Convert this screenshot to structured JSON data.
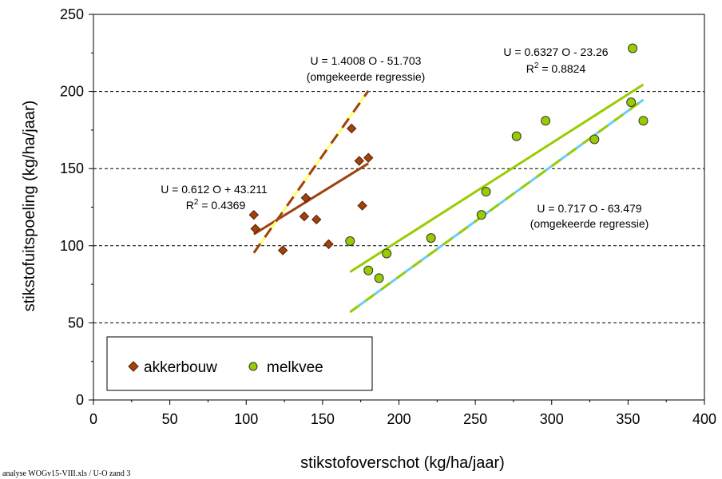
{
  "chart_data": {
    "type": "scatter",
    "xlabel": "stikstofoverschot  (kg/ha/jaar)",
    "ylabel": "stikstofuitspoeling (kg/ha/jaar)",
    "xlim": [
      0,
      400
    ],
    "ylim": [
      0,
      250
    ],
    "xticks": [
      "0",
      "50",
      "100",
      "150",
      "200",
      "250",
      "300",
      "350",
      "400"
    ],
    "yticks": [
      "0",
      "50",
      "100",
      "150",
      "200",
      "250"
    ],
    "grid": "horizontal dashed",
    "legend_position": "bottom-left",
    "series": [
      {
        "name": "akkerbouw",
        "marker": "diamond",
        "color": "#a0410f",
        "points": [
          [
            105,
            120
          ],
          [
            106,
            111
          ],
          [
            124,
            97
          ],
          [
            138,
            119
          ],
          [
            139,
            131
          ],
          [
            146,
            117
          ],
          [
            154,
            101
          ],
          [
            169,
            176
          ],
          [
            174,
            155
          ],
          [
            176,
            126
          ],
          [
            180,
            157
          ]
        ]
      },
      {
        "name": "melkvee",
        "marker": "circle",
        "color": "#99cc00",
        "points": [
          [
            168,
            103
          ],
          [
            180,
            84
          ],
          [
            187,
            79
          ],
          [
            192,
            95
          ],
          [
            221,
            105
          ],
          [
            254,
            120
          ],
          [
            257,
            135
          ],
          [
            277,
            171
          ],
          [
            296,
            181
          ],
          [
            328,
            169
          ],
          [
            352,
            193
          ],
          [
            353,
            228
          ],
          [
            360,
            181
          ]
        ]
      }
    ],
    "trendlines": [
      {
        "series": "akkerbouw",
        "x": [
          105,
          180
        ],
        "y": [
          107.47,
          153.37
        ],
        "color": "#a0410f",
        "style": "solid"
      },
      {
        "series": "akkerbouw",
        "x": [
          105,
          180
        ],
        "y": [
          95.38,
          200.44
        ],
        "color": "#a0410f",
        "style": "dashed",
        "dash_color": "#ffff66"
      },
      {
        "series": "melkvee",
        "x": [
          168,
          360
        ],
        "y": [
          83.03,
          204.51
        ],
        "color": "#99cc00",
        "style": "solid"
      },
      {
        "series": "melkvee",
        "x": [
          168,
          360
        ],
        "y": [
          57.0,
          194.64
        ],
        "color": "#99cc00",
        "style": "dashed",
        "dash_color": "#66ccff"
      }
    ],
    "annotations": [
      {
        "id": "akker_inv_line1",
        "text": "U = 1.4008 O - 51.703"
      },
      {
        "id": "akker_inv_line2",
        "text": "(omgekeerde regressie)"
      },
      {
        "id": "akker_reg_line1",
        "text": "U = 0.612 O + 43.211"
      },
      {
        "id": "akker_reg_r2_label",
        "text": "R"
      },
      {
        "id": "akker_reg_r2_sup",
        "text": "2"
      },
      {
        "id": "akker_reg_r2_value",
        "text": " = 0.4369"
      },
      {
        "id": "melk_reg_line1",
        "text": "U = 0.6327 O - 23.26"
      },
      {
        "id": "melk_reg_r2_label",
        "text": "R"
      },
      {
        "id": "melk_reg_r2_sup",
        "text": "2"
      },
      {
        "id": "melk_reg_r2_value",
        "text": " = 0.8824"
      },
      {
        "id": "melk_inv_line1",
        "text": "U = 0.717 O - 63.479"
      },
      {
        "id": "melk_inv_line2",
        "text": "(omgekeerde regressie)"
      }
    ]
  },
  "footer": "analyse  WOGv15-VIII.xls / U-O zand 3"
}
